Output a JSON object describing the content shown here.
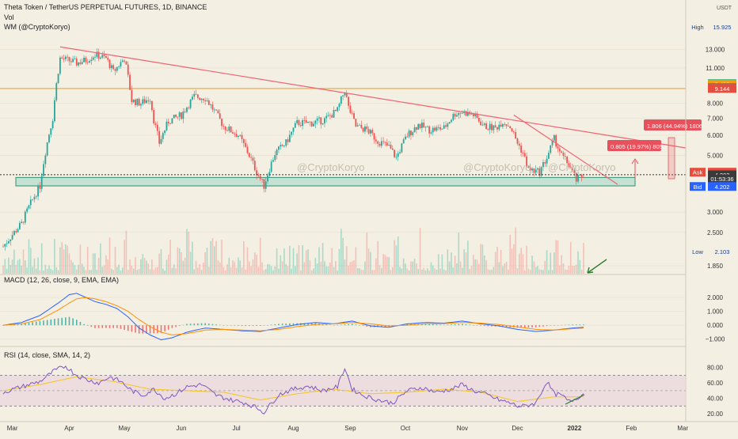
{
  "header": {
    "title": "Theta Token / TetherUS PERPETUAL FUTURES, 1D, BINANCE",
    "vol_label": "Vol",
    "indicator_label": "WM (@CryptoKoryo)"
  },
  "corner": {
    "quote": "USDT"
  },
  "watermarks": [
    "@CryptoKoryo",
    "@CryptoKoryo",
    "@CryptoKoryo"
  ],
  "price_axis": {
    "ticks": [
      {
        "value": 13.0,
        "label": "13.000"
      },
      {
        "value": 11.0,
        "label": "11.000"
      },
      {
        "value": 8.0,
        "label": "8.000"
      },
      {
        "value": 7.0,
        "label": "7.000"
      },
      {
        "value": 6.0,
        "label": "6.000"
      },
      {
        "value": 5.0,
        "label": "5.000"
      },
      {
        "value": 3.0,
        "label": "3.000"
      },
      {
        "value": 2.5,
        "label": "2.500"
      },
      {
        "value": 1.85,
        "label": "1.850"
      }
    ],
    "badges": [
      {
        "label": "High",
        "value": "15.925",
        "price": 15.925,
        "tag_color": "#2a66c8",
        "bg": "#f4efe3",
        "fg": "#1a3f8a"
      },
      {
        "label": "",
        "value": "9.549",
        "price": 9.549,
        "bg": "#35a86a",
        "fg": "#ffffff"
      },
      {
        "label": "",
        "value": "9.490",
        "price": 9.49,
        "bg": "#f39c12",
        "fg": "#ffffff"
      },
      {
        "label": "",
        "value": "9.229",
        "price": 9.229,
        "bg": "#7d7d7d",
        "fg": "#ffffff"
      },
      {
        "label": "",
        "value": "9.144",
        "price": 9.144,
        "bg": "#e74c3c",
        "fg": "#ffffff"
      },
      {
        "label": "Ask",
        "value": "4.203",
        "price": 4.3,
        "tag_color": "#e74c3c",
        "bg": "#e74c3c",
        "fg": "#ffffff"
      },
      {
        "label": "",
        "value": "4.203",
        "price": 4.2,
        "bg": "#3a3a3a",
        "fg": "#ffffff"
      },
      {
        "label": "",
        "value": "01:53:36",
        "price": 4.05,
        "bg": "#3a3a3a",
        "fg": "#ffffff"
      },
      {
        "label": "Bid",
        "value": "4.202",
        "price": 3.78,
        "tag_color": "#2962ff",
        "bg": "#2962ff",
        "fg": "#ffffff"
      },
      {
        "label": "Low",
        "value": "2.103",
        "price": 2.1,
        "tag_color": "#2a66c8",
        "bg": "#f4efe3",
        "fg": "#1a3f8a"
      }
    ]
  },
  "time_axis": {
    "labels": [
      {
        "label": "Mar",
        "day": 5
      },
      {
        "label": "Apr",
        "day": 36
      },
      {
        "label": "May",
        "day": 66
      },
      {
        "label": "Jun",
        "day": 97
      },
      {
        "label": "Jul",
        "day": 127
      },
      {
        "label": "Aug",
        "day": 158
      },
      {
        "label": "Sep",
        "day": 189
      },
      {
        "label": "Oct",
        "day": 219
      },
      {
        "label": "Nov",
        "day": 250
      },
      {
        "label": "Dec",
        "day": 280
      },
      {
        "label": "2022",
        "day": 311
      },
      {
        "label": "Feb",
        "day": 342
      },
      {
        "label": "Mar",
        "day": 370
      },
      {
        "label": "Apr",
        "day": 401
      }
    ]
  },
  "annotations": {
    "target1": "0.805 (19.97%) 805",
    "target2": "1.806 (44.94%) 1806"
  },
  "macd": {
    "title": "MACD (12, 26, close, 9, EMA, EMA)",
    "ticks": [
      {
        "value": 2.0,
        "label": "2.000"
      },
      {
        "value": 1.0,
        "label": "1.000"
      },
      {
        "value": 0.0,
        "label": "0.000"
      },
      {
        "value": -1.0,
        "label": "−1.000"
      }
    ]
  },
  "rsi": {
    "title": "RSI (14, close, SMA, 14, 2)",
    "ticks": [
      {
        "value": 80,
        "label": "80.00"
      },
      {
        "value": 60,
        "label": "60.00"
      },
      {
        "value": 40,
        "label": "40.00"
      },
      {
        "value": 20,
        "label": "20.00"
      }
    ]
  },
  "colors": {
    "background": "#f4efe3",
    "bull": "#26a69a",
    "bear": "#ef5350",
    "trendline": "#f06272",
    "horizontal_level": "#f39c12",
    "support_zone": "#9fd6c7",
    "macd_line": "#2962ff",
    "signal_line": "#ff8f00",
    "rsi_line": "#7e57c2",
    "rsi_band": "#e9d6dc",
    "arrow": "#2e7d32"
  },
  "chart_data": [
    {
      "type": "candlestick",
      "title": "Theta Token / TetherUS PERPETUAL FUTURES, 1D, BINANCE",
      "x_unit": "day index from Feb 24 2021 (1D candles)",
      "y_scale": "log",
      "ylim": [
        1.85,
        16
      ],
      "series": [
        {
          "name": "price (approx. close anchors)",
          "x": [
            0,
            10,
            20,
            27,
            31,
            35,
            40,
            45,
            50,
            56,
            60,
            66,
            70,
            75,
            80,
            82,
            85,
            90,
            97,
            104,
            110,
            120,
            128,
            134,
            138,
            142,
            148,
            154,
            160,
            168,
            175,
            182,
            186,
            188,
            192,
            198,
            204,
            210,
            214,
            220,
            226,
            232,
            240,
            246,
            250,
            256,
            262,
            268,
            272,
            276,
            280,
            283,
            286,
            292,
            296,
            300,
            304,
            308,
            312,
            316
          ],
          "values": [
            2.2,
            2.7,
            3.8,
            7.0,
            12.0,
            11.8,
            11.5,
            11.8,
            12.4,
            12.0,
            10.6,
            12.0,
            8.2,
            8.0,
            8.4,
            6.9,
            5.6,
            6.8,
            7.2,
            8.5,
            8.4,
            6.5,
            6.0,
            5.0,
            4.3,
            3.8,
            5.1,
            5.6,
            6.7,
            6.7,
            6.9,
            7.5,
            9.0,
            7.7,
            6.5,
            6.3,
            5.7,
            5.4,
            4.9,
            6.0,
            6.6,
            6.3,
            6.4,
            7.3,
            7.4,
            7.2,
            6.5,
            6.4,
            6.8,
            6.5,
            5.6,
            5.1,
            4.4,
            4.3,
            4.9,
            5.8,
            5.0,
            4.6,
            4.0,
            4.2
          ]
        }
      ],
      "horizontal_levels": [
        9.144
      ],
      "support_zone": [
        3.8,
        4.1
      ],
      "current_price": 4.203
    },
    {
      "type": "line",
      "title": "MACD (12, 26, close, 9, EMA, EMA)",
      "ylim": [
        -1.3,
        2.8
      ],
      "series": [
        {
          "name": "MACD",
          "x": [
            0,
            10,
            20,
            30,
            36,
            40,
            45,
            50,
            56,
            62,
            68,
            74,
            80,
            86,
            92,
            100,
            110,
            120,
            130,
            140,
            150,
            160,
            170,
            180,
            190,
            200,
            210,
            220,
            230,
            240,
            250,
            260,
            270,
            280,
            290,
            300,
            310,
            316
          ],
          "values": [
            0.0,
            0.2,
            0.7,
            1.6,
            2.2,
            2.3,
            2.0,
            1.7,
            1.5,
            1.2,
            0.6,
            -0.2,
            -0.7,
            -1.05,
            -0.9,
            -0.5,
            -0.2,
            -0.3,
            -0.4,
            -0.45,
            -0.2,
            0.05,
            0.2,
            0.1,
            0.3,
            -0.05,
            -0.15,
            0.1,
            0.2,
            0.15,
            0.3,
            0.1,
            -0.05,
            -0.3,
            -0.45,
            -0.35,
            -0.2,
            -0.15
          ]
        },
        {
          "name": "Signal",
          "x": [
            0,
            10,
            20,
            30,
            36,
            40,
            45,
            50,
            56,
            62,
            68,
            74,
            80,
            86,
            92,
            100,
            110,
            120,
            130,
            140,
            150,
            160,
            170,
            180,
            190,
            200,
            210,
            220,
            230,
            240,
            250,
            260,
            270,
            280,
            290,
            300,
            310,
            316
          ],
          "values": [
            0.0,
            0.1,
            0.4,
            1.1,
            1.6,
            1.9,
            2.0,
            1.9,
            1.7,
            1.4,
            1.0,
            0.4,
            -0.1,
            -0.5,
            -0.7,
            -0.6,
            -0.35,
            -0.3,
            -0.35,
            -0.4,
            -0.3,
            -0.1,
            0.05,
            0.1,
            0.2,
            0.1,
            -0.05,
            0.0,
            0.1,
            0.12,
            0.2,
            0.15,
            0.05,
            -0.12,
            -0.3,
            -0.35,
            -0.25,
            -0.2
          ]
        }
      ]
    },
    {
      "type": "line",
      "title": "RSI (14, close, SMA, 14, 2)",
      "ylim": [
        15,
        90
      ],
      "bands": [
        30,
        70
      ],
      "series": [
        {
          "name": "RSI",
          "x": [
            0,
            10,
            20,
            28,
            34,
            40,
            46,
            52,
            58,
            64,
            70,
            76,
            82,
            88,
            94,
            100,
            108,
            116,
            124,
            132,
            138,
            142,
            150,
            158,
            166,
            174,
            182,
            186,
            190,
            196,
            204,
            212,
            220,
            228,
            236,
            244,
            250,
            256,
            262,
            270,
            276,
            280,
            284,
            290,
            296,
            300,
            304,
            308,
            312,
            316
          ],
          "values": [
            48,
            55,
            62,
            76,
            82,
            70,
            64,
            60,
            68,
            62,
            50,
            44,
            52,
            40,
            46,
            55,
            58,
            44,
            38,
            34,
            28,
            22,
            45,
            52,
            56,
            50,
            55,
            80,
            52,
            44,
            38,
            34,
            50,
            54,
            48,
            52,
            58,
            50,
            46,
            38,
            34,
            30,
            30,
            34,
            62,
            46,
            44,
            36,
            40,
            46
          ]
        },
        {
          "name": "RSI MA",
          "x": [
            0,
            20,
            40,
            60,
            80,
            100,
            120,
            140,
            160,
            180,
            200,
            220,
            240,
            260,
            280,
            300,
            316
          ],
          "values": [
            50,
            58,
            68,
            62,
            52,
            50,
            48,
            38,
            46,
            52,
            46,
            48,
            52,
            48,
            36,
            42,
            42
          ]
        }
      ]
    }
  ]
}
